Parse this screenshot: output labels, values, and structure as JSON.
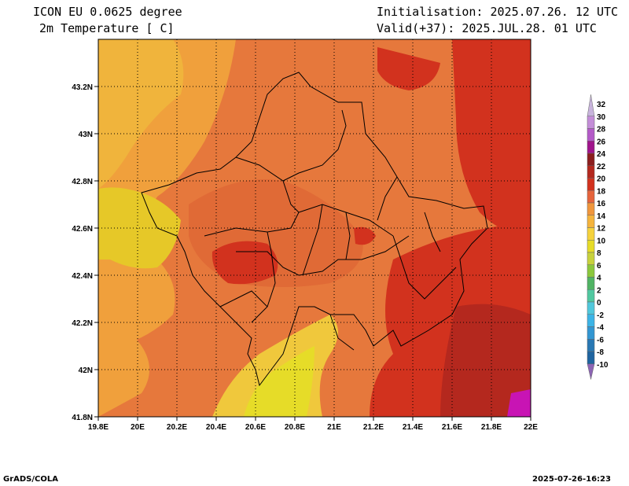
{
  "header": {
    "model": "ICON EU 0.0625 degree",
    "field": "2m Temperature [ C]",
    "init": "Initialisation: 2025.07.26. 12 UTC",
    "valid": "Valid(+37): 2025.JUL.28. 01 UTC"
  },
  "axes": {
    "lon_labels": [
      "19.8E",
      "20E",
      "20.2E",
      "20.4E",
      "20.6E",
      "20.8E",
      "21E",
      "21.2E",
      "21.4E",
      "21.6E",
      "21.8E",
      "22E"
    ],
    "lat_labels": [
      "41.8N",
      "42N",
      "42.2N",
      "42.4N",
      "42.6N",
      "42.8N",
      "43N",
      "43.2N"
    ]
  },
  "colorbar": {
    "labels": [
      "32",
      "30",
      "28",
      "26",
      "24",
      "22",
      "20",
      "18",
      "16",
      "14",
      "12",
      "10",
      "8",
      "6",
      "4",
      "2",
      "0",
      "-2",
      "-4",
      "-6",
      "-8",
      "-10"
    ],
    "colors": [
      "#c8b4dc",
      "#c48ed8",
      "#b45ac8",
      "#a0148c",
      "#8c1e1e",
      "#b4281e",
      "#d2321e",
      "#e6643c",
      "#f0963c",
      "#f5b43c",
      "#f5d23c",
      "#e6dc28",
      "#c8d23c",
      "#8cc83c",
      "#50b464",
      "#50c8a0",
      "#50c8dc",
      "#3cb4e6",
      "#3296d2",
      "#2878b4",
      "#1e64a0",
      "#8c64b4"
    ]
  },
  "footer": {
    "left": "GrADS/COLA",
    "right": "2025-07-26-16:23"
  },
  "colors": {
    "orange": "#e6783c",
    "red": "#d2321e",
    "light_orange": "#f0a03c",
    "yellow": "#f0dc28",
    "dark_red": "#b4281e",
    "magenta": "#c814b4"
  }
}
